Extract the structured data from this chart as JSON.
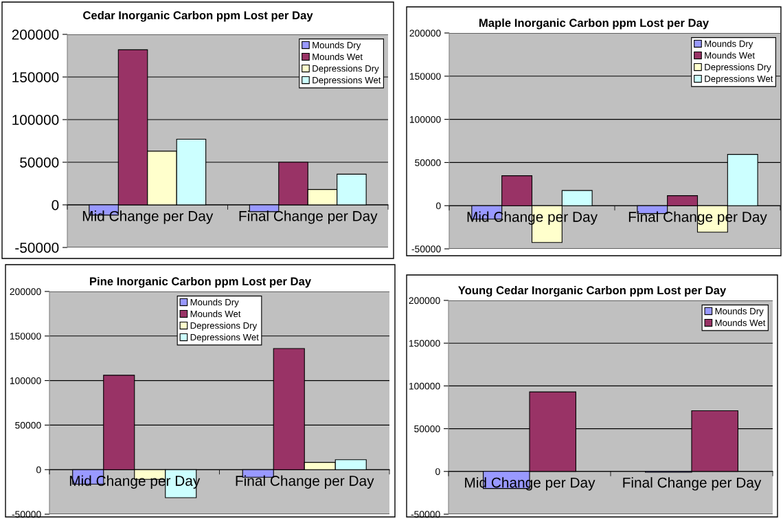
{
  "chart_data": [
    {
      "type": "bar",
      "title": "Cedar Inorganic Carbon ppm Lost per Day",
      "categories": [
        "Mid Change per Day",
        "Final Change per Day"
      ],
      "ylim": [
        -50000,
        200000
      ],
      "yticks": [
        -50000,
        0,
        50000,
        100000,
        150000,
        200000
      ],
      "grid": "y",
      "legend": "top right",
      "series": [
        {
          "name": "Mounds Dry",
          "color": "#9999ff",
          "values": [
            -12000,
            -8000
          ]
        },
        {
          "name": "Mounds Wet",
          "color": "#993366",
          "values": [
            182000,
            50000
          ]
        },
        {
          "name": "Depressions Dry",
          "color": "#ffffcc",
          "values": [
            63000,
            18000
          ]
        },
        {
          "name": "Depressions Wet",
          "color": "#ccffff",
          "values": [
            77000,
            36000
          ]
        }
      ]
    },
    {
      "type": "bar",
      "title": "Maple Inorganic Carbon ppm Lost per Day",
      "categories": [
        "Mid Change per Day",
        "Final Change per Day"
      ],
      "ylim": [
        -50000,
        200000
      ],
      "yticks": [
        -50000,
        0,
        50000,
        100000,
        150000,
        200000
      ],
      "grid": "y",
      "legend": "top right",
      "series": [
        {
          "name": "Mounds Dry",
          "color": "#9999ff",
          "values": [
            -15600,
            -9100
          ]
        },
        {
          "name": "Mounds Wet",
          "color": "#993366",
          "values": [
            34700,
            11600
          ]
        },
        {
          "name": "Depressions Dry",
          "color": "#ffffcc",
          "values": [
            -42600,
            -30700
          ]
        },
        {
          "name": "Depressions Wet",
          "color": "#ccffff",
          "values": [
            17600,
            59400
          ]
        }
      ]
    },
    {
      "type": "bar",
      "title": "Pine Inorganic Carbon ppm Lost per Day",
      "categories": [
        "Mid Change per Day",
        "Final Change per Day"
      ],
      "ylim": [
        -50000,
        200000
      ],
      "yticks": [
        -50000,
        0,
        50000,
        100000,
        150000,
        200000
      ],
      "grid": "y",
      "legend": "top",
      "series": [
        {
          "name": "Mounds Dry",
          "color": "#9999ff",
          "values": [
            -16200,
            -8500
          ]
        },
        {
          "name": "Mounds Wet",
          "color": "#993366",
          "values": [
            106000,
            136000
          ]
        },
        {
          "name": "Depressions Dry",
          "color": "#ffffcc",
          "values": [
            -10800,
            8200
          ]
        },
        {
          "name": "Depressions Wet",
          "color": "#ccffff",
          "values": [
            -31500,
            11100
          ]
        }
      ]
    },
    {
      "type": "bar",
      "title": "Young Cedar Inorganic Carbon ppm Lost per Day",
      "categories": [
        "Mid Change per Day",
        "Final Change per Day"
      ],
      "ylim": [
        -50000,
        200000
      ],
      "yticks": [
        -50000,
        0,
        50000,
        100000,
        150000,
        200000
      ],
      "grid": "y",
      "legend": "top right",
      "series": [
        {
          "name": "Mounds Dry",
          "color": "#9999ff",
          "values": [
            -20000,
            -1000
          ]
        },
        {
          "name": "Mounds Wet",
          "color": "#993366",
          "values": [
            93000,
            71000
          ]
        }
      ]
    }
  ]
}
